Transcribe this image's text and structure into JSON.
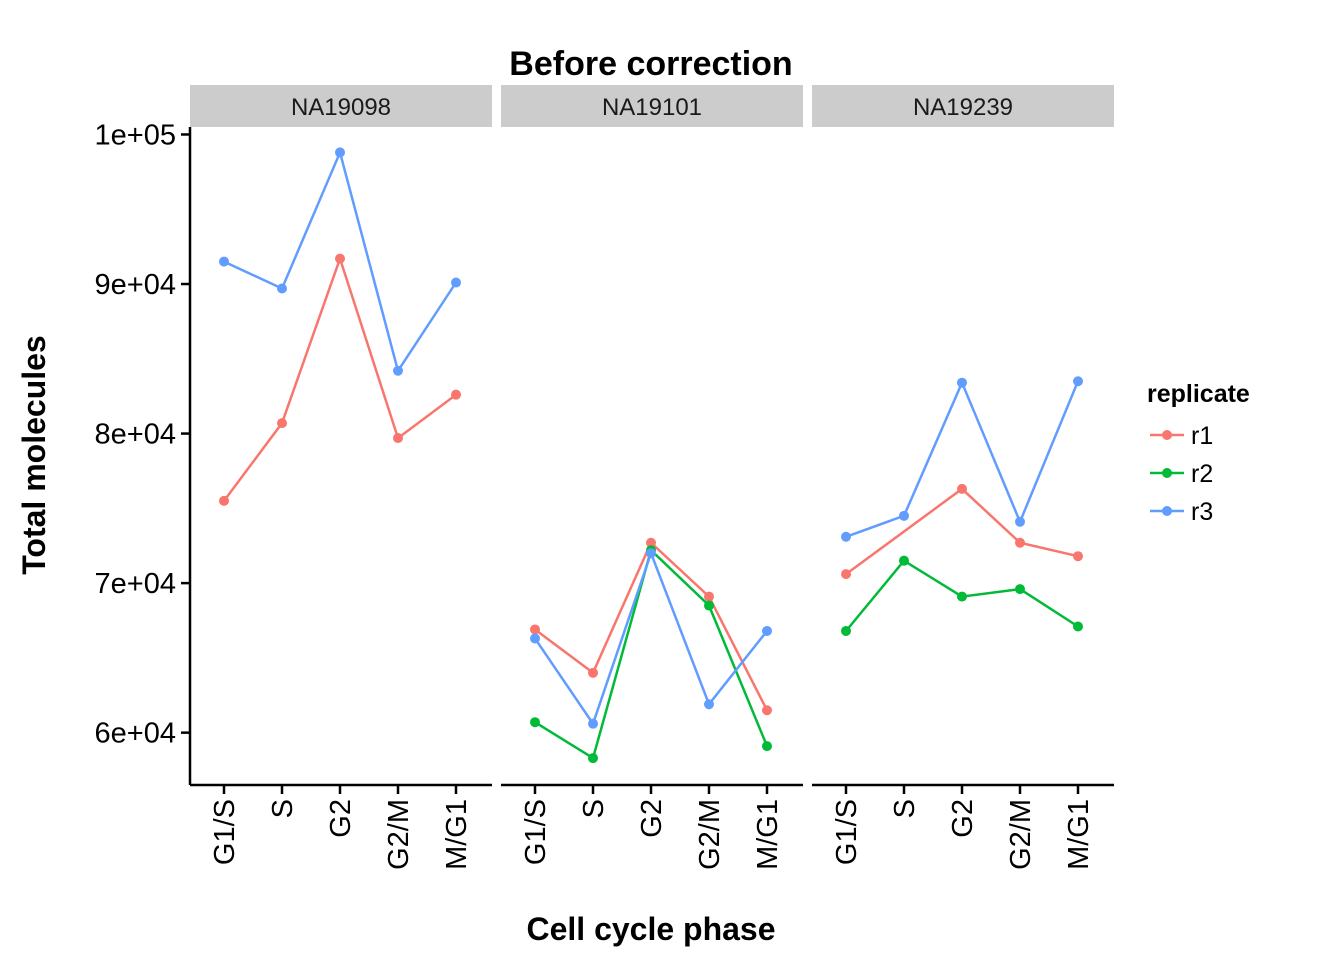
{
  "chart_data": {
    "type": "line",
    "title": "Before correction",
    "xlabel": "Cell cycle phase",
    "ylabel": "Total molecules",
    "categories": [
      "G1/S",
      "S",
      "G2",
      "G2/M",
      "M/G1"
    ],
    "y_ticks": [
      60000,
      70000,
      80000,
      90000,
      100000
    ],
    "y_tick_labels": [
      "6e+04",
      "7e+04",
      "8e+04",
      "9e+04",
      "1e+05"
    ],
    "ylim": [
      56500,
      100500
    ],
    "legend": {
      "title": "replicate",
      "position": "right",
      "entries": [
        {
          "name": "r1",
          "color": "#F8766D"
        },
        {
          "name": "r2",
          "color": "#00BA38"
        },
        {
          "name": "r3",
          "color": "#619CFF"
        }
      ]
    },
    "panels": [
      {
        "name": "NA19098",
        "series": [
          {
            "name": "r1",
            "values": [
              75500,
              80700,
              91700,
              79700,
              82600
            ]
          },
          {
            "name": "r3",
            "values": [
              91500,
              89700,
              98800,
              84200,
              90100
            ]
          }
        ]
      },
      {
        "name": "NA19101",
        "series": [
          {
            "name": "r1",
            "values": [
              66900,
              64000,
              72700,
              69100,
              61500
            ]
          },
          {
            "name": "r2",
            "values": [
              60700,
              58300,
              72200,
              68500,
              59100
            ]
          },
          {
            "name": "r3",
            "values": [
              66300,
              60600,
              72000,
              61900,
              66800
            ]
          }
        ]
      },
      {
        "name": "NA19239",
        "series": [
          {
            "name": "r1",
            "values": [
              70600,
              null,
              76300,
              72700,
              71800
            ]
          },
          {
            "name": "r2",
            "values": [
              66800,
              71500,
              69100,
              69600,
              67100
            ]
          },
          {
            "name": "r3",
            "values": [
              73100,
              74500,
              83400,
              74100,
              83500
            ]
          }
        ]
      }
    ]
  }
}
